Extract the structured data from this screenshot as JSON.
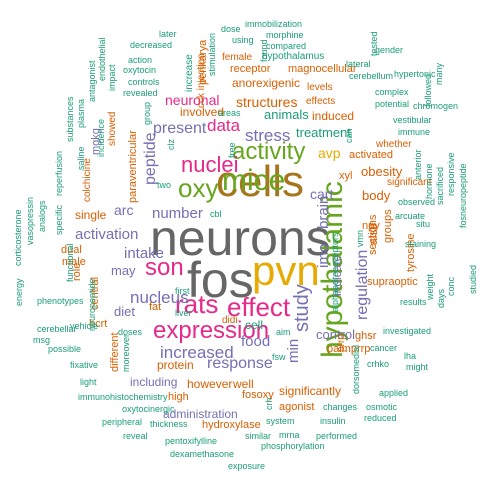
{
  "palette": {
    "green": "#1b9e77",
    "orange": "#d95f02",
    "purple": "#7570b3",
    "pink": "#e7298a",
    "lime": "#66a61e",
    "gold": "#e6ab02",
    "brown": "#a6761d",
    "gray": "#666666"
  },
  "words": [
    {
      "text": "neurons",
      "color": "gray"
    },
    {
      "text": "fos",
      "color": "gray"
    },
    {
      "text": "cells",
      "color": "brown"
    },
    {
      "text": "pvn",
      "color": "gold"
    },
    {
      "text": "hypothalamic",
      "color": "lime"
    },
    {
      "text": "mice",
      "color": "lime"
    },
    {
      "text": "rats",
      "color": "pink"
    },
    {
      "text": "effect",
      "color": "pink"
    },
    {
      "text": "son",
      "color": "pink"
    },
    {
      "text": "oxy",
      "color": "lime"
    },
    {
      "text": "expression",
      "color": "pink"
    },
    {
      "text": "activity",
      "color": "lime"
    },
    {
      "text": "nuclei",
      "color": "pink"
    },
    {
      "text": "study",
      "color": "purple"
    },
    {
      "text": "increased",
      "color": "purple"
    },
    {
      "text": "nucleus",
      "color": "purple"
    },
    {
      "text": "response",
      "color": "purple"
    },
    {
      "text": "stress",
      "color": "purple"
    },
    {
      "text": "data",
      "color": "pink"
    },
    {
      "text": "regulation",
      "color": "purple"
    },
    {
      "text": "peptide",
      "color": "purple"
    },
    {
      "text": "present",
      "color": "purple"
    },
    {
      "text": "brain",
      "color": "purple"
    },
    {
      "text": "food",
      "color": "purple"
    },
    {
      "text": "number",
      "color": "purple"
    },
    {
      "text": "intake",
      "color": "purple"
    },
    {
      "text": "activation",
      "color": "purple"
    },
    {
      "text": "min",
      "color": "purple"
    },
    {
      "text": "imo",
      "color": "purple"
    },
    {
      "text": "neuronal",
      "color": "pink"
    },
    {
      "text": "structures",
      "color": "orange"
    },
    {
      "text": "treatment",
      "color": "green"
    },
    {
      "text": "avp",
      "color": "gold"
    },
    {
      "text": "arc",
      "color": "purple"
    },
    {
      "text": "cart",
      "color": "purple"
    },
    {
      "text": "diet",
      "color": "purple"
    },
    {
      "text": "may",
      "color": "purple"
    },
    {
      "text": "indicate",
      "color": "purple"
    },
    {
      "text": "control",
      "color": "purple"
    },
    {
      "text": "body",
      "color": "orange"
    },
    {
      "text": "obesity",
      "color": "orange"
    },
    {
      "text": "animals",
      "color": "green"
    },
    {
      "text": "induced",
      "color": "orange"
    },
    {
      "text": "anorexigenic",
      "color": "orange"
    },
    {
      "text": "involved",
      "color": "orange"
    },
    {
      "text": "including",
      "color": "purple"
    },
    {
      "text": "protein",
      "color": "orange"
    },
    {
      "text": "however",
      "color": "orange"
    },
    {
      "text": "well",
      "color": "orange"
    },
    {
      "text": "fosoxy",
      "color": "orange"
    },
    {
      "text": "administration",
      "color": "purple"
    },
    {
      "text": "significantly",
      "color": "orange"
    },
    {
      "text": "cell",
      "color": "green"
    },
    {
      "text": "single",
      "color": "orange"
    },
    {
      "text": "magnocellular",
      "color": "orange"
    },
    {
      "text": "receptor",
      "color": "orange"
    },
    {
      "text": "perikarya",
      "color": "orange"
    },
    {
      "text": "paraventricular",
      "color": "orange"
    },
    {
      "text": "mgkg",
      "color": "purple"
    },
    {
      "text": "activated",
      "color": "orange"
    },
    {
      "text": "npy",
      "color": "orange"
    },
    {
      "text": "sections",
      "color": "orange"
    },
    {
      "text": "groups",
      "color": "orange"
    },
    {
      "text": "supraoptic",
      "color": "orange"
    },
    {
      "text": "tyrosine",
      "color": "orange"
    },
    {
      "text": "ghsr",
      "color": "orange"
    },
    {
      "text": "palmprrp",
      "color": "orange"
    },
    {
      "text": "agonist",
      "color": "orange"
    },
    {
      "text": "hydroxylase",
      "color": "orange"
    },
    {
      "text": "high",
      "color": "orange"
    },
    {
      "text": "fat",
      "color": "orange"
    },
    {
      "text": "hcrt",
      "color": "orange"
    },
    {
      "text": "dual",
      "color": "orange"
    },
    {
      "text": "role",
      "color": "orange"
    },
    {
      "text": "male",
      "color": "orange"
    },
    {
      "text": "central",
      "color": "orange"
    },
    {
      "text": "different",
      "color": "orange"
    },
    {
      "text": "also",
      "color": "orange"
    },
    {
      "text": "xyl",
      "color": "orange"
    },
    {
      "text": "levels",
      "color": "orange"
    },
    {
      "text": "effects",
      "color": "orange"
    },
    {
      "text": "female",
      "color": "orange"
    },
    {
      "text": "showed",
      "color": "orange"
    },
    {
      "text": "colchicine",
      "color": "orange"
    },
    {
      "text": "cck injection",
      "color": "orange"
    },
    {
      "text": "significant",
      "color": "orange"
    },
    {
      "text": "whether",
      "color": "orange"
    },
    {
      "text": "prrp",
      "color": "orange"
    },
    {
      "text": "didi",
      "color": "orange"
    },
    {
      "text": "hypothalamus",
      "color": "green"
    },
    {
      "text": "increase",
      "color": "green"
    },
    {
      "text": "stimulation",
      "color": "green"
    },
    {
      "text": "controls",
      "color": "green"
    },
    {
      "text": "revealed",
      "color": "green"
    },
    {
      "text": "areas",
      "color": "green"
    },
    {
      "text": "cbl",
      "color": "green"
    },
    {
      "text": "two",
      "color": "green"
    },
    {
      "text": "first",
      "color": "green"
    },
    {
      "text": "liver",
      "color": "green"
    },
    {
      "text": "aim",
      "color": "green"
    },
    {
      "text": "fsw",
      "color": "green"
    },
    {
      "text": "immunohistochemistry",
      "color": "green"
    },
    {
      "text": "oxytocinergic",
      "color": "green"
    },
    {
      "text": "thickness",
      "color": "green"
    },
    {
      "text": "pentoxifylline",
      "color": "green"
    },
    {
      "text": "dexamethasone",
      "color": "green"
    },
    {
      "text": "exposure",
      "color": "green"
    },
    {
      "text": "phosphorylation",
      "color": "green"
    },
    {
      "text": "performed",
      "color": "green"
    },
    {
      "text": "similar",
      "color": "green"
    },
    {
      "text": "system",
      "color": "green"
    },
    {
      "text": "insulin",
      "color": "green"
    },
    {
      "text": "mrna",
      "color": "green"
    },
    {
      "text": "changes",
      "color": "green"
    },
    {
      "text": "osmotic",
      "color": "green"
    },
    {
      "text": "reduced",
      "color": "green"
    },
    {
      "text": "applied",
      "color": "green"
    },
    {
      "text": "dorsomedial",
      "color": "green"
    },
    {
      "text": "crhko",
      "color": "green"
    },
    {
      "text": "cancer",
      "color": "green"
    },
    {
      "text": "lha",
      "color": "green"
    },
    {
      "text": "might",
      "color": "green"
    },
    {
      "text": "investigated",
      "color": "green"
    },
    {
      "text": "results",
      "color": "green"
    },
    {
      "text": "staining",
      "color": "green"
    },
    {
      "text": "days",
      "color": "green"
    },
    {
      "text": "vmn",
      "color": "green"
    },
    {
      "text": "arcuate",
      "color": "green"
    },
    {
      "text": "observed",
      "color": "green"
    },
    {
      "text": "anterior",
      "color": "green"
    },
    {
      "text": "hormone",
      "color": "green"
    },
    {
      "text": "sacrificed",
      "color": "green"
    },
    {
      "text": "responsive",
      "color": "green"
    },
    {
      "text": "fosneuropeptide",
      "color": "green"
    },
    {
      "text": "immune",
      "color": "green"
    },
    {
      "text": "vestibular",
      "color": "green"
    },
    {
      "text": "potential",
      "color": "green"
    },
    {
      "text": "complex",
      "color": "green"
    },
    {
      "text": "chromogen",
      "color": "green"
    },
    {
      "text": "hypertonic",
      "color": "green"
    },
    {
      "text": "followed",
      "color": "green"
    },
    {
      "text": "many",
      "color": "green"
    },
    {
      "text": "gender",
      "color": "green"
    },
    {
      "text": "tested",
      "color": "green"
    },
    {
      "text": "lateral",
      "color": "green"
    },
    {
      "text": "cerebellum",
      "color": "green"
    },
    {
      "text": "immobilization",
      "color": "green"
    },
    {
      "text": "morphine",
      "color": "green"
    },
    {
      "text": "compared",
      "color": "green"
    },
    {
      "text": "using",
      "color": "green"
    },
    {
      "text": "dose",
      "color": "green"
    },
    {
      "text": "decreased",
      "color": "green"
    },
    {
      "text": "later",
      "color": "green"
    },
    {
      "text": "action",
      "color": "green"
    },
    {
      "text": "oxytocin",
      "color": "green"
    },
    {
      "text": "endothelial",
      "color": "green"
    },
    {
      "text": "impact",
      "color": "green"
    },
    {
      "text": "antagonist",
      "color": "green"
    },
    {
      "text": "plasma",
      "color": "green"
    },
    {
      "text": "substances",
      "color": "green"
    },
    {
      "text": "saline",
      "color": "green"
    },
    {
      "text": "incidence",
      "color": "green"
    },
    {
      "text": "reperfusion",
      "color": "green"
    },
    {
      "text": "specific",
      "color": "green"
    },
    {
      "text": "analogs",
      "color": "green"
    },
    {
      "text": "vasopressin",
      "color": "green"
    },
    {
      "text": "functional",
      "color": "green"
    },
    {
      "text": "phenotypes",
      "color": "green"
    },
    {
      "text": "corticosterone",
      "color": "green"
    },
    {
      "text": "energy",
      "color": "green"
    },
    {
      "text": "msg",
      "color": "green"
    },
    {
      "text": "cerebellar",
      "color": "green"
    },
    {
      "text": "possible",
      "color": "green"
    },
    {
      "text": "vehicle",
      "color": "green"
    },
    {
      "text": "neuropeptide",
      "color": "green"
    },
    {
      "text": "fixative",
      "color": "green"
    },
    {
      "text": "light",
      "color": "green"
    },
    {
      "text": "peripheral",
      "color": "green"
    },
    {
      "text": "reveal",
      "color": "green"
    },
    {
      "text": "moreover",
      "color": "green"
    },
    {
      "text": "doses",
      "color": "green"
    },
    {
      "text": "group",
      "color": "green"
    },
    {
      "text": "clz",
      "color": "green"
    },
    {
      "text": "free",
      "color": "green"
    },
    {
      "text": "crh",
      "color": "green"
    },
    {
      "text": "can",
      "color": "green"
    },
    {
      "text": "weight",
      "color": "green"
    },
    {
      "text": "conc",
      "color": "green"
    },
    {
      "text": "situ",
      "color": "green"
    },
    {
      "text": "studied",
      "color": "green"
    },
    {
      "text": "found",
      "color": "green"
    },
    {
      "text": "alphaadrenoceptors",
      "color": "green"
    },
    {
      "text": "elicited",
      "color": "green"
    },
    {
      "text": "dmh",
      "color": "green"
    }
  ]
}
